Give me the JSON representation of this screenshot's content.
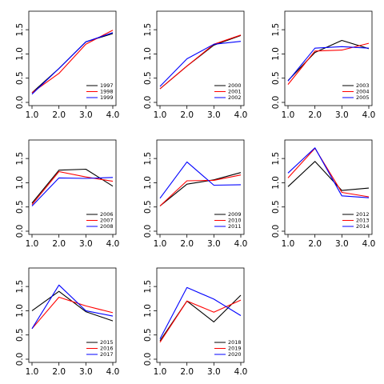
{
  "chart_data": {
    "type": "line",
    "x": [
      1.0,
      2.0,
      3.0,
      4.0
    ],
    "x_ticks": [
      "1.0",
      "2.0",
      "3.0",
      "4.0"
    ],
    "y_ticks": [
      "0.0",
      "0.5",
      "1.0",
      "1.5"
    ],
    "xlim": [
      1.0,
      4.0
    ],
    "ylim": [
      0.0,
      1.75
    ],
    "colors": [
      "#000000",
      "#ff0000",
      "#0000ff"
    ],
    "legend_position": "bottom-right",
    "panels": [
      {
        "series": [
          {
            "name": "1997",
            "values": [
              0.2,
              0.7,
              1.25,
              1.42
            ]
          },
          {
            "name": "1998",
            "values": [
              0.2,
              0.6,
              1.2,
              1.49
            ]
          },
          {
            "name": "1999",
            "values": [
              0.17,
              0.7,
              1.25,
              1.44
            ]
          }
        ]
      },
      {
        "series": [
          {
            "name": "2000",
            "values": [
              0.28,
              0.75,
              1.18,
              1.38
            ]
          },
          {
            "name": "2001",
            "values": [
              0.28,
              0.75,
              1.2,
              1.39
            ]
          },
          {
            "name": "2002",
            "values": [
              0.33,
              0.9,
              1.2,
              1.26
            ]
          }
        ]
      },
      {
        "series": [
          {
            "name": "2003",
            "values": [
              0.45,
              1.03,
              1.28,
              1.11
            ]
          },
          {
            "name": "2004",
            "values": [
              0.37,
              1.06,
              1.08,
              1.22
            ]
          },
          {
            "name": "2005",
            "values": [
              0.44,
              1.12,
              1.15,
              1.12
            ]
          }
        ]
      },
      {
        "series": [
          {
            "name": "2006",
            "values": [
              0.58,
              1.26,
              1.28,
              0.93
            ]
          },
          {
            "name": "2007",
            "values": [
              0.55,
              1.23,
              1.12,
              1.03
            ]
          },
          {
            "name": "2008",
            "values": [
              0.52,
              1.1,
              1.09,
              1.11
            ]
          }
        ]
      },
      {
        "series": [
          {
            "name": "2009",
            "values": [
              0.52,
              0.97,
              1.06,
              1.21
            ]
          },
          {
            "name": "2010",
            "values": [
              0.52,
              1.04,
              1.05,
              1.16
            ]
          },
          {
            "name": "2011",
            "values": [
              0.68,
              1.43,
              0.95,
              0.96
            ]
          }
        ]
      },
      {
        "series": [
          {
            "name": "2012",
            "values": [
              0.92,
              1.44,
              0.84,
              0.89
            ]
          },
          {
            "name": "2013",
            "values": [
              1.1,
              1.71,
              0.8,
              0.71
            ]
          },
          {
            "name": "2014",
            "values": [
              1.2,
              1.72,
              0.73,
              0.69
            ]
          }
        ]
      },
      {
        "series": [
          {
            "name": "2015",
            "values": [
              1.0,
              1.4,
              0.98,
              0.79
            ]
          },
          {
            "name": "2016",
            "values": [
              0.63,
              1.28,
              1.1,
              0.96
            ]
          },
          {
            "name": "2017",
            "values": [
              0.63,
              1.53,
              1.0,
              0.89
            ]
          }
        ]
      },
      {
        "series": [
          {
            "name": "2018",
            "values": [
              0.38,
              1.2,
              0.77,
              1.32
            ]
          },
          {
            "name": "2019",
            "values": [
              0.35,
              1.2,
              0.97,
              1.22
            ]
          },
          {
            "name": "2020",
            "values": [
              0.42,
              1.48,
              1.24,
              0.9
            ]
          }
        ]
      }
    ]
  }
}
